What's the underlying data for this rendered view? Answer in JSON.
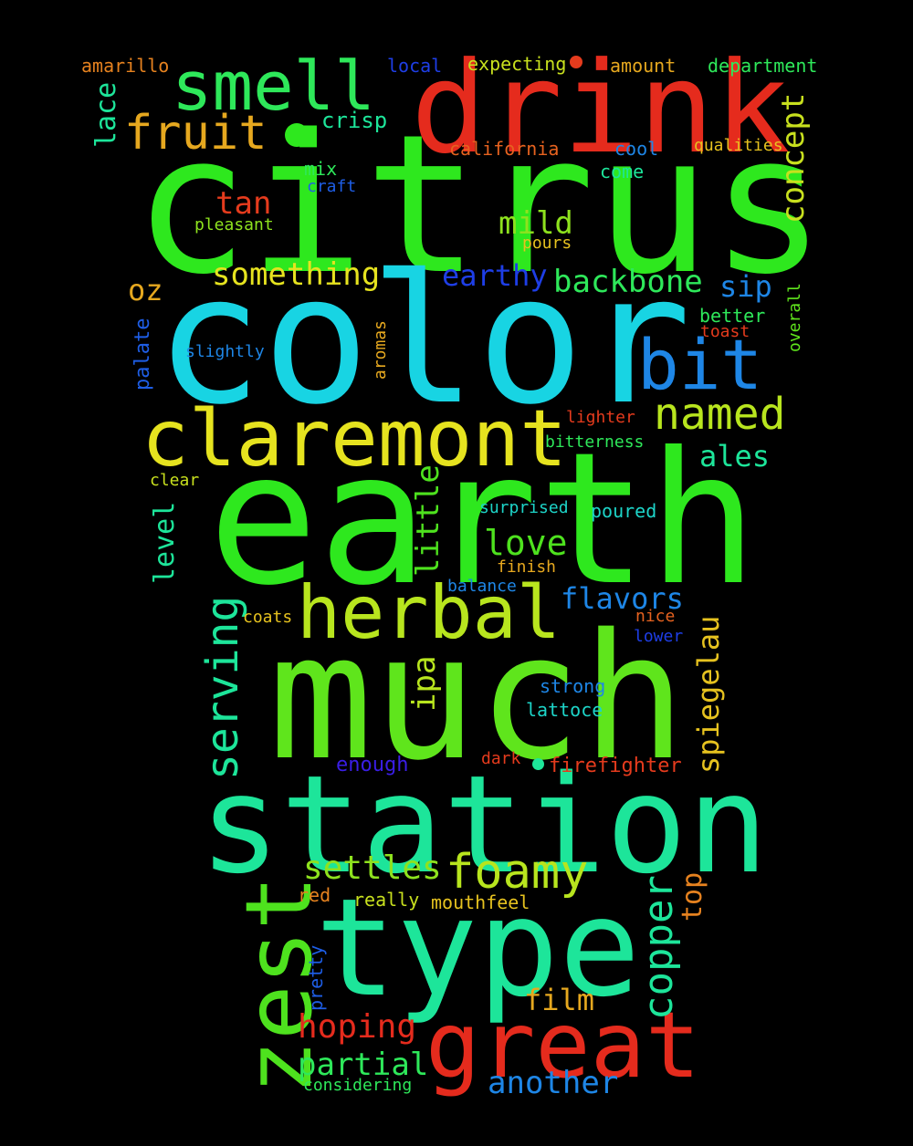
{
  "words": [
    {
      "text": "citrus",
      "color": "#2ee81e"
    },
    {
      "text": "color",
      "color": "#18d4e3"
    },
    {
      "text": "earth",
      "color": "#2ee81e"
    },
    {
      "text": "much",
      "color": "#5fe51c"
    },
    {
      "text": "drink",
      "color": "#e52b1d"
    },
    {
      "text": "station",
      "color": "#1de59a"
    },
    {
      "text": "type",
      "color": "#1de59a"
    },
    {
      "text": "zest",
      "color": "#4ee21e"
    },
    {
      "text": "great",
      "color": "#e52b1d"
    },
    {
      "text": "claremont",
      "color": "#e6e31f"
    },
    {
      "text": "herbal",
      "color": "#b8e51e"
    },
    {
      "text": "smell",
      "color": "#2ee85a"
    },
    {
      "text": "bit",
      "color": "#1e86e6"
    },
    {
      "text": "fruit",
      "color": "#e6a81f"
    },
    {
      "text": "named",
      "color": "#b8e51e"
    },
    {
      "text": "foamy",
      "color": "#b8e51e"
    },
    {
      "text": "serving",
      "color": "#1de59a"
    },
    {
      "text": "copper",
      "color": "#1de59a"
    },
    {
      "text": "concept",
      "color": "#c8e01e"
    },
    {
      "text": "something",
      "color": "#e6e31f"
    },
    {
      "text": "backbone",
      "color": "#2ee85a"
    },
    {
      "text": "mild",
      "color": "#8ee21e"
    },
    {
      "text": "love",
      "color": "#4ee21e"
    },
    {
      "text": "settles",
      "color": "#8ee21e"
    },
    {
      "text": "hoping",
      "color": "#e52b1d"
    },
    {
      "text": "partial",
      "color": "#2ee85a"
    },
    {
      "text": "another",
      "color": "#1e86e6"
    },
    {
      "text": "flavors",
      "color": "#1e86e6"
    },
    {
      "text": "earthy",
      "color": "#1e3ee6"
    },
    {
      "text": "little",
      "color": "#4ee21e"
    },
    {
      "text": "spiegelau",
      "color": "#e6c21f"
    },
    {
      "text": "ipa",
      "color": "#b8e51e"
    },
    {
      "text": "film",
      "color": "#e6a81f"
    },
    {
      "text": "tan",
      "color": "#e53b1d"
    },
    {
      "text": "ales",
      "color": "#1de59a"
    },
    {
      "text": "sip",
      "color": "#1e86e6"
    },
    {
      "text": "oz",
      "color": "#e6a81f"
    },
    {
      "text": "level",
      "color": "#1de59a"
    },
    {
      "text": "lace",
      "color": "#1de59a"
    },
    {
      "text": "top",
      "color": "#e6821f"
    },
    {
      "text": "crisp",
      "color": "#1de59a"
    },
    {
      "text": "palate",
      "color": "#1e5ee6"
    },
    {
      "text": "amarillo",
      "color": "#e6821f"
    },
    {
      "text": "local",
      "color": "#1e3ee6"
    },
    {
      "text": "expecting",
      "color": "#c8e01e"
    },
    {
      "text": "amount",
      "color": "#e6a81f"
    },
    {
      "text": "department",
      "color": "#2ee85a"
    },
    {
      "text": "california",
      "color": "#e6621f"
    },
    {
      "text": "cool",
      "color": "#1e86e6"
    },
    {
      "text": "qualities",
      "color": "#e6c21f"
    },
    {
      "text": "mix",
      "color": "#2ee85a"
    },
    {
      "text": "come",
      "color": "#1de59a"
    },
    {
      "text": "craft",
      "color": "#1e5ee6"
    },
    {
      "text": "pleasant",
      "color": "#8ee21e"
    },
    {
      "text": "pours",
      "color": "#e6c21f"
    },
    {
      "text": "better",
      "color": "#2ee85a"
    },
    {
      "text": "toast",
      "color": "#e53b1d"
    },
    {
      "text": "overall",
      "color": "#5fe51c"
    },
    {
      "text": "slightly",
      "color": "#1e86e6"
    },
    {
      "text": "aromas",
      "color": "#e6a81f"
    },
    {
      "text": "lighter",
      "color": "#e53b1d"
    },
    {
      "text": "bitterness",
      "color": "#2ee85a"
    },
    {
      "text": "clear",
      "color": "#c8e01e"
    },
    {
      "text": "surprised",
      "color": "#1dd4c8"
    },
    {
      "text": "poured",
      "color": "#1dd4c8"
    },
    {
      "text": "finish",
      "color": "#e6a81f"
    },
    {
      "text": "balance",
      "color": "#1e86e6"
    },
    {
      "text": "coats",
      "color": "#e6c21f"
    },
    {
      "text": "nice",
      "color": "#e6621f"
    },
    {
      "text": "lower",
      "color": "#1e3ee6"
    },
    {
      "text": "strong",
      "color": "#1e86e6"
    },
    {
      "text": "lattoce",
      "color": "#1dd4c8"
    },
    {
      "text": "enough",
      "color": "#3a1ee6"
    },
    {
      "text": "dark",
      "color": "#e53b1d"
    },
    {
      "text": "firefighter",
      "color": "#e53b1d"
    },
    {
      "text": "red",
      "color": "#e6821f"
    },
    {
      "text": "really",
      "color": "#c8e01e"
    },
    {
      "text": "mouthfeel",
      "color": "#e6c21f"
    },
    {
      "text": "pretty",
      "color": "#1e5ee6"
    },
    {
      "text": "considering",
      "color": "#2ee85a"
    }
  ],
  "dots": [
    {
      "color": "#2ee81e"
    },
    {
      "color": "#e53b1d"
    },
    {
      "color": "#1de59a"
    }
  ]
}
